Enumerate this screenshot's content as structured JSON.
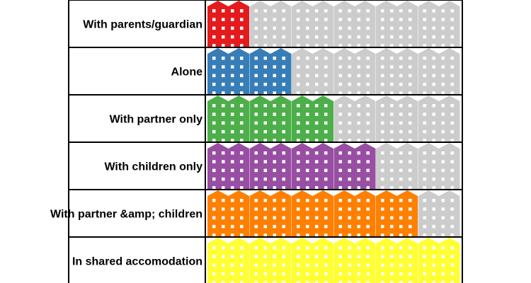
{
  "chart_data": {
    "type": "pictogram",
    "units_per_row": 6,
    "rows": [
      {
        "label": "With parents/guardian",
        "value": 1,
        "color": "#e41a1c"
      },
      {
        "label": "Alone",
        "value": 2,
        "color": "#377eb8"
      },
      {
        "label": "With partner only",
        "value": 3,
        "color": "#4daf4a"
      },
      {
        "label": "With children only",
        "value": 4,
        "color": "#984ea3"
      },
      {
        "label": "With partner &amp; children",
        "value": 5,
        "color": "#ff7f00"
      },
      {
        "label": "In shared accomodation",
        "value": 6,
        "color": "#ffff33"
      }
    ],
    "inactive_color": "#cccccc",
    "window_color": "#ffffff",
    "grid_color": "#000000"
  }
}
